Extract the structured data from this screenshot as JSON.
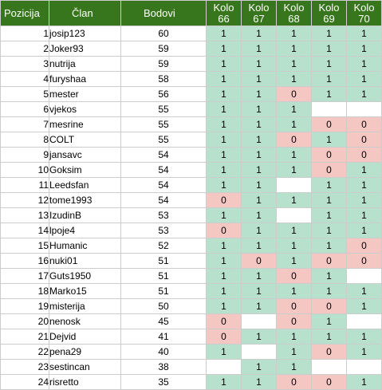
{
  "headers": {
    "pozicija": "Pozicija",
    "clan": "Član",
    "bodovi": "Bodovi",
    "kolo": [
      "Kolo\n66",
      "Kolo\n67",
      "Kolo\n68",
      "Kolo\n69",
      "Kolo\n70"
    ]
  },
  "colors": {
    "header_bg": "#38761d",
    "cell_win": "#b7e1cd",
    "cell_loss": "#f4c7c3"
  },
  "rows": [
    {
      "pos": "1",
      "name": "josip123",
      "pts": "60",
      "k": [
        "1",
        "1",
        "1",
        "1",
        "1"
      ]
    },
    {
      "pos": "2",
      "name": "Joker93",
      "pts": "59",
      "k": [
        "1",
        "1",
        "1",
        "1",
        "1"
      ]
    },
    {
      "pos": "3",
      "name": "nutrija",
      "pts": "59",
      "k": [
        "1",
        "1",
        "1",
        "1",
        "1"
      ]
    },
    {
      "pos": "4",
      "name": "furyshaa",
      "pts": "58",
      "k": [
        "1",
        "1",
        "1",
        "1",
        "1"
      ]
    },
    {
      "pos": "5",
      "name": "mester",
      "pts": "56",
      "k": [
        "1",
        "1",
        "0",
        "1",
        "1"
      ]
    },
    {
      "pos": "6",
      "name": "vjekos",
      "pts": "55",
      "k": [
        "1",
        "1",
        "1",
        "",
        ""
      ]
    },
    {
      "pos": "7",
      "name": "mesrine",
      "pts": "55",
      "k": [
        "1",
        "1",
        "1",
        "0",
        "0"
      ]
    },
    {
      "pos": "8",
      "name": "COLT",
      "pts": "55",
      "k": [
        "1",
        "1",
        "0",
        "1",
        "0"
      ]
    },
    {
      "pos": "9",
      "name": "jansavc",
      "pts": "54",
      "k": [
        "1",
        "1",
        "1",
        "0",
        "0"
      ]
    },
    {
      "pos": "10",
      "name": "Goksim",
      "pts": "54",
      "k": [
        "1",
        "1",
        "1",
        "0",
        "1"
      ]
    },
    {
      "pos": "11",
      "name": "Leedsfan",
      "pts": "54",
      "k": [
        "1",
        "1",
        "",
        "1",
        "1"
      ]
    },
    {
      "pos": "12",
      "name": "tome1993",
      "pts": "54",
      "k": [
        "0",
        "1",
        "1",
        "1",
        "1"
      ]
    },
    {
      "pos": "13",
      "name": "IzudinB",
      "pts": "53",
      "k": [
        "1",
        "1",
        "",
        "1",
        "1"
      ]
    },
    {
      "pos": "14",
      "name": "lpoje4",
      "pts": "53",
      "k": [
        "0",
        "1",
        "1",
        "1",
        "1"
      ]
    },
    {
      "pos": "15",
      "name": "Humanic",
      "pts": "52",
      "k": [
        "1",
        "1",
        "1",
        "1",
        "0"
      ]
    },
    {
      "pos": "16",
      "name": "nuki01",
      "pts": "51",
      "k": [
        "1",
        "0",
        "1",
        "0",
        "0"
      ]
    },
    {
      "pos": "17",
      "name": "Guts1950",
      "pts": "51",
      "k": [
        "1",
        "1",
        "0",
        "1",
        ""
      ]
    },
    {
      "pos": "18",
      "name": "Marko15",
      "pts": "51",
      "k": [
        "1",
        "1",
        "1",
        "1",
        "1"
      ]
    },
    {
      "pos": "19",
      "name": "misterija",
      "pts": "50",
      "k": [
        "1",
        "1",
        "0",
        "0",
        "1"
      ]
    },
    {
      "pos": "20",
      "name": "nenosk",
      "pts": "45",
      "k": [
        "0",
        "",
        "0",
        "1",
        ""
      ]
    },
    {
      "pos": "21",
      "name": "Dejvid",
      "pts": "41",
      "k": [
        "0",
        "1",
        "1",
        "1",
        "1"
      ]
    },
    {
      "pos": "22",
      "name": "pena29",
      "pts": "40",
      "k": [
        "1",
        "",
        "1",
        "0",
        "1"
      ]
    },
    {
      "pos": "23",
      "name": "sestincan",
      "pts": "38",
      "k": [
        "",
        "1",
        "1",
        "",
        ""
      ]
    },
    {
      "pos": "24",
      "name": "risretto",
      "pts": "35",
      "k": [
        "1",
        "1",
        "0",
        "0",
        "1"
      ]
    }
  ]
}
